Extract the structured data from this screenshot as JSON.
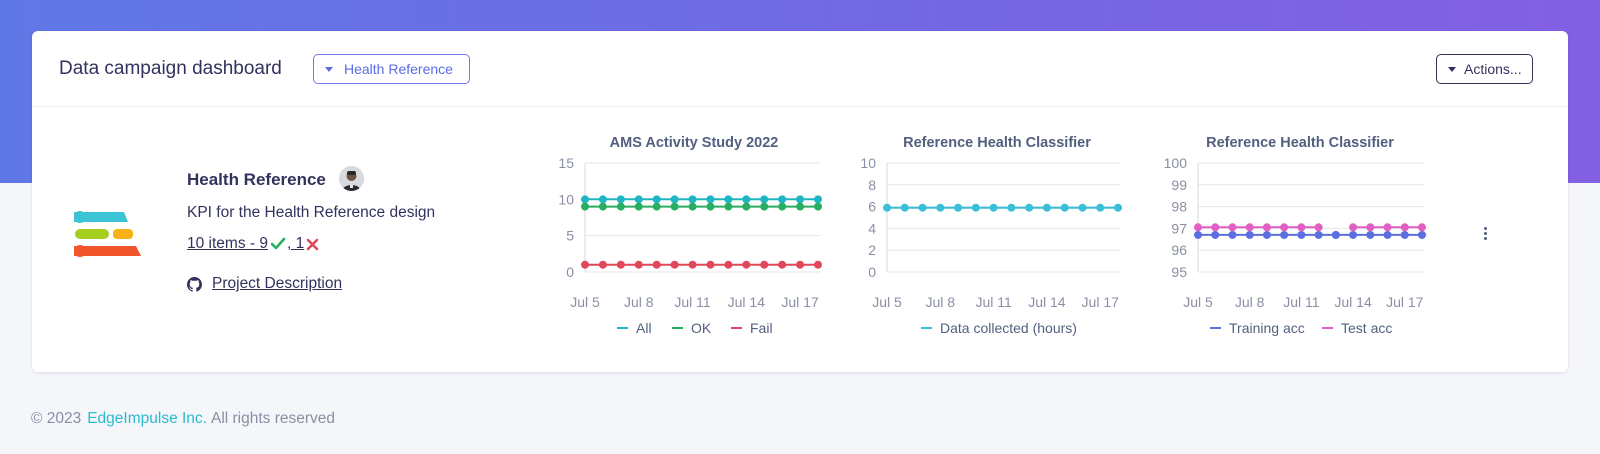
{
  "header": {
    "title": "Data campaign dashboard",
    "dataset_button": "Health Reference",
    "actions_button": "Actions..."
  },
  "project": {
    "name": "Health Reference",
    "description": "KPI for the Health Reference design",
    "items_text": "10 items - 9",
    "fail_text": ", 1",
    "link_label": "Project Description"
  },
  "colors": {
    "all": "#1fb5c4",
    "ok": "#27ae60",
    "fail": "#e0475b",
    "data_collected": "#39c0d8",
    "training": "#5b6fe0",
    "test": "#e25fc2"
  },
  "chart_data": [
    {
      "type": "line",
      "title": "AMS Activity Study 2022",
      "x": [
        "Jul 5",
        "Jul 6",
        "Jul 7",
        "Jul 8",
        "Jul 9",
        "Jul 10",
        "Jul 11",
        "Jul 12",
        "Jul 13",
        "Jul 14",
        "Jul 15",
        "Jul 16",
        "Jul 17",
        "Jul 18"
      ],
      "xticks": [
        "Jul 5",
        "Jul 8",
        "Jul 11",
        "Jul 14",
        "Jul 17"
      ],
      "yticks": [
        0,
        5,
        10,
        15
      ],
      "ylim": [
        0,
        15
      ],
      "series": [
        {
          "name": "All",
          "color": "#1fb5c4",
          "values": [
            10,
            10,
            10,
            10,
            10,
            10,
            10,
            10,
            10,
            10,
            10,
            10,
            10,
            10
          ]
        },
        {
          "name": "OK",
          "color": "#27ae60",
          "values": [
            9,
            9,
            9,
            9,
            9,
            9,
            9,
            9,
            9,
            9,
            9,
            9,
            9,
            9
          ]
        },
        {
          "name": "Fail",
          "color": "#e0475b",
          "values": [
            1,
            1,
            1,
            1,
            1,
            1,
            1,
            1,
            1,
            1,
            1,
            1,
            1,
            1
          ]
        }
      ]
    },
    {
      "type": "line",
      "title": "Reference Health Classifier",
      "x": [
        "Jul 5",
        "Jul 6",
        "Jul 7",
        "Jul 8",
        "Jul 9",
        "Jul 10",
        "Jul 11",
        "Jul 12",
        "Jul 13",
        "Jul 14",
        "Jul 15",
        "Jul 16",
        "Jul 17",
        "Jul 18"
      ],
      "xticks": [
        "Jul 5",
        "Jul 8",
        "Jul 11",
        "Jul 14",
        "Jul 17"
      ],
      "yticks": [
        0,
        2,
        4,
        6,
        8,
        10
      ],
      "ylim": [
        0,
        10
      ],
      "series": [
        {
          "name": "Data collected (hours)",
          "color": "#39c0d8",
          "values": [
            5.9,
            5.9,
            5.9,
            5.9,
            5.9,
            5.9,
            5.9,
            5.9,
            5.9,
            5.9,
            5.9,
            5.9,
            5.9,
            5.9
          ]
        }
      ]
    },
    {
      "type": "line",
      "title": "Reference Health Classifier",
      "x": [
        "Jul 5",
        "Jul 6",
        "Jul 7",
        "Jul 8",
        "Jul 9",
        "Jul 10",
        "Jul 11",
        "Jul 12",
        "Jul 13",
        "Jul 14",
        "Jul 15",
        "Jul 16",
        "Jul 17",
        "Jul 18"
      ],
      "xticks": [
        "Jul 5",
        "Jul 8",
        "Jul 11",
        "Jul 14",
        "Jul 17"
      ],
      "yticks": [
        95,
        96,
        97,
        98,
        99,
        100
      ],
      "ylim": [
        95,
        100
      ],
      "series": [
        {
          "name": "Training acc",
          "color": "#5b6fe0",
          "values": [
            96.7,
            96.7,
            96.7,
            96.7,
            96.7,
            96.7,
            96.7,
            96.7,
            96.7,
            96.7,
            96.7,
            96.7,
            96.7,
            96.7
          ]
        },
        {
          "name": "Test acc",
          "color": "#e25fc2",
          "values": [
            97.05,
            97.05,
            97.05,
            97.05,
            97.05,
            97.05,
            97.05,
            97.05,
            null,
            97.05,
            97.05,
            97.05,
            97.05,
            97.05
          ]
        }
      ]
    }
  ],
  "footer": {
    "copyright": "© 2023",
    "brand": "EdgeImpulse Inc.",
    "rights": "All rights reserved"
  }
}
